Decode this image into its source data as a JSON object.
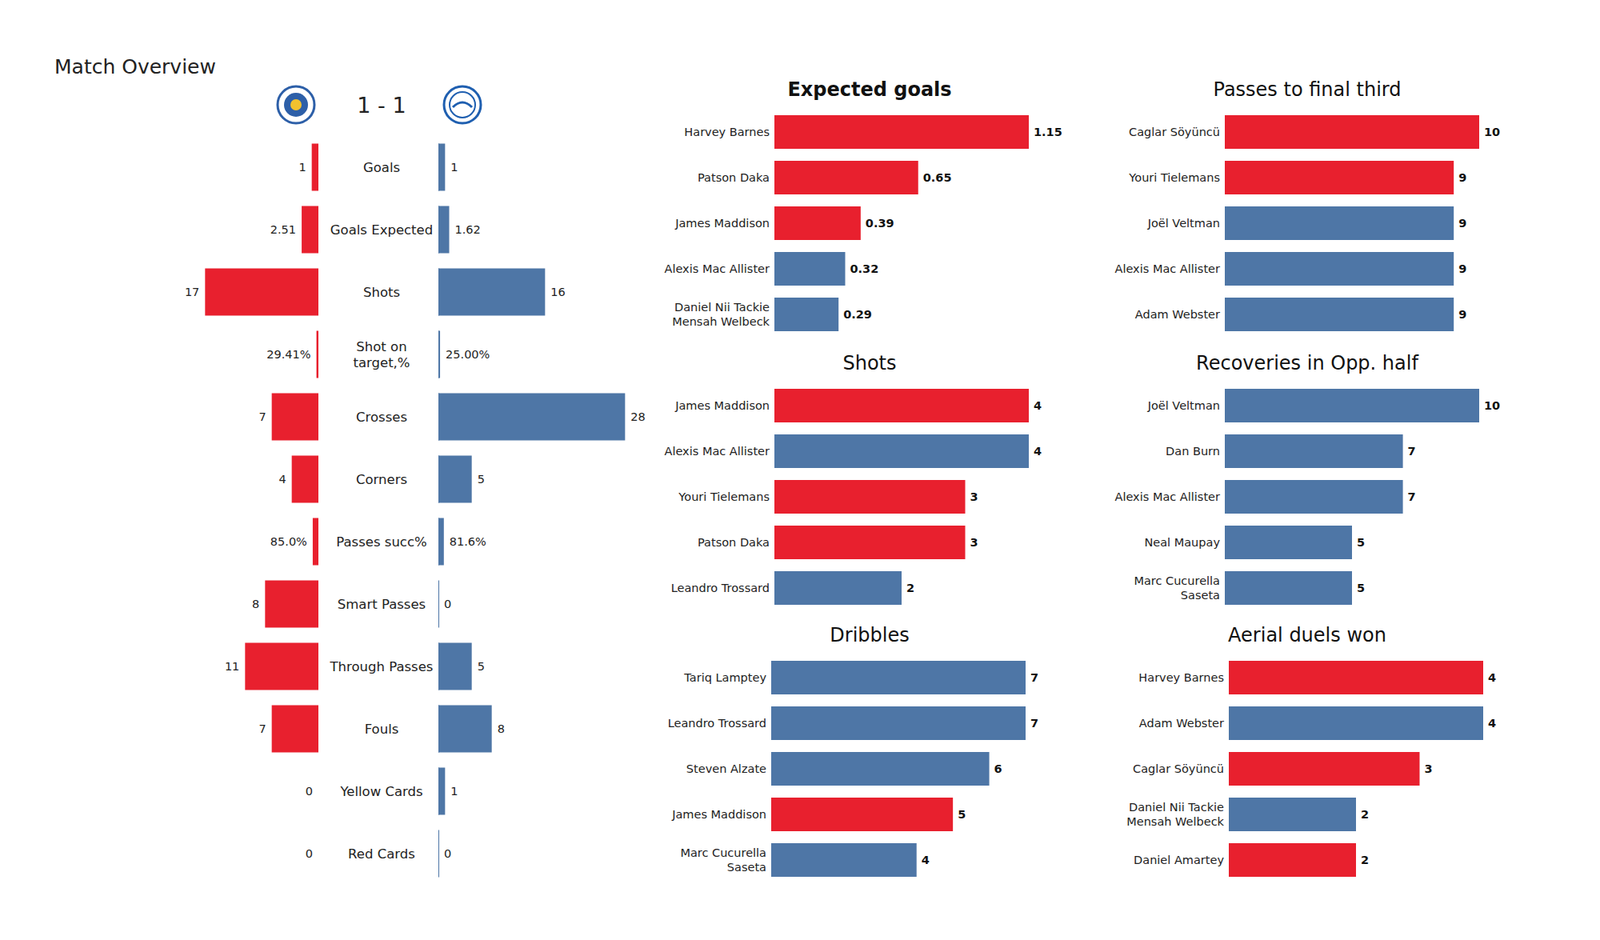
{
  "chart_data": [
    {
      "type": "bar",
      "orientation": "horizontal",
      "title": "Match Overview",
      "subtitle": "1 - 1",
      "categories": [
        "Goals",
        "Goals Expected",
        "Shots",
        "Shot on\ntarget,%",
        "Crosses",
        "Corners",
        "Passes succ%",
        "Smart Passes",
        "Through Passes",
        "Fouls",
        "Yellow Cards",
        "Red Cards"
      ],
      "series": [
        {
          "color": "#e8202e",
          "values": [
            1,
            2.51,
            17,
            0.2941,
            7,
            4,
            0.85,
            8,
            11,
            7,
            0,
            0
          ],
          "value_labels": [
            "1",
            "2.51",
            "17",
            "29.41%",
            "7",
            "4",
            "85.0%",
            "8",
            "11",
            "7",
            "0",
            "0"
          ]
        },
        {
          "color": "#4e76a6",
          "values": [
            1,
            1.62,
            16,
            0.25,
            28,
            5,
            0.816,
            0,
            5,
            8,
            1,
            0
          ],
          "value_labels": [
            "1",
            "1.62",
            "16",
            "25.00%",
            "28",
            "5",
            "81.6%",
            "0",
            "5",
            "8",
            "1",
            "0"
          ]
        }
      ],
      "xlim": [
        0,
        30
      ],
      "data_labels": true,
      "tick_labels": "y"
    },
    {
      "type": "bar",
      "orientation": "horizontal",
      "title": "Expected goals",
      "categories": [
        "Harvey Barnes",
        "Patson Daka",
        "James Maddison",
        "Alexis Mac Allister",
        "Daniel Nii Tackie\nMensah Welbeck"
      ],
      "values": [
        1.15,
        0.65,
        0.39,
        0.32,
        0.29
      ],
      "colors": [
        "#e8202e",
        "#e8202e",
        "#e8202e",
        "#4e76a6",
        "#4e76a6"
      ],
      "xlim": [
        0,
        1.15
      ],
      "data_labels": true,
      "tick_labels": "y"
    },
    {
      "type": "bar",
      "orientation": "horizontal",
      "title": "Shots",
      "categories": [
        "James Maddison",
        "Alexis Mac Allister",
        "Youri Tielemans",
        "Patson Daka",
        "Leandro Trossard"
      ],
      "values": [
        4,
        4,
        3,
        3,
        2
      ],
      "colors": [
        "#e8202e",
        "#4e76a6",
        "#e8202e",
        "#e8202e",
        "#4e76a6"
      ],
      "xlim": [
        0,
        4
      ],
      "data_labels": true,
      "tick_labels": "y"
    },
    {
      "type": "bar",
      "orientation": "horizontal",
      "title": "Dribbles",
      "categories": [
        "Tariq Lamptey",
        "Leandro Trossard",
        "Steven Alzate",
        "James Maddison",
        "Marc Cucurella\nSaseta"
      ],
      "values": [
        7,
        7,
        6,
        5,
        4
      ],
      "colors": [
        "#4e76a6",
        "#4e76a6",
        "#4e76a6",
        "#e8202e",
        "#4e76a6"
      ],
      "xlim": [
        0,
        7
      ],
      "data_labels": true,
      "tick_labels": "y"
    },
    {
      "type": "bar",
      "orientation": "horizontal",
      "title": "Passes to final third",
      "categories": [
        "Caglar Söyüncü",
        "Youri Tielemans",
        "Joël Veltman",
        "Alexis Mac Allister",
        "Adam Webster"
      ],
      "values": [
        10,
        9,
        9,
        9,
        9
      ],
      "colors": [
        "#e8202e",
        "#e8202e",
        "#4e76a6",
        "#4e76a6",
        "#4e76a6"
      ],
      "xlim": [
        0,
        10
      ],
      "data_labels": true,
      "tick_labels": "y"
    },
    {
      "type": "bar",
      "orientation": "horizontal",
      "title": "Recoveries in Opp. half",
      "categories": [
        "Joël Veltman",
        "Dan Burn",
        "Alexis Mac Allister",
        "Neal Maupay",
        "Marc Cucurella\nSaseta"
      ],
      "values": [
        10,
        7,
        7,
        5,
        5
      ],
      "colors": [
        "#4e76a6",
        "#4e76a6",
        "#4e76a6",
        "#4e76a6",
        "#4e76a6"
      ],
      "xlim": [
        0,
        10
      ],
      "data_labels": true,
      "tick_labels": "y"
    },
    {
      "type": "bar",
      "orientation": "horizontal",
      "title": "Aerial duels won",
      "categories": [
        "Harvey Barnes",
        "Adam Webster",
        "Caglar Söyüncü",
        "Daniel Nii Tackie\nMensah Welbeck",
        "Daniel Amartey"
      ],
      "values": [
        4,
        4,
        3,
        2,
        2
      ],
      "colors": [
        "#e8202e",
        "#4e76a6",
        "#e8202e",
        "#4e76a6",
        "#e8202e"
      ],
      "xlim": [
        0,
        4
      ],
      "data_labels": true,
      "tick_labels": "y"
    }
  ]
}
